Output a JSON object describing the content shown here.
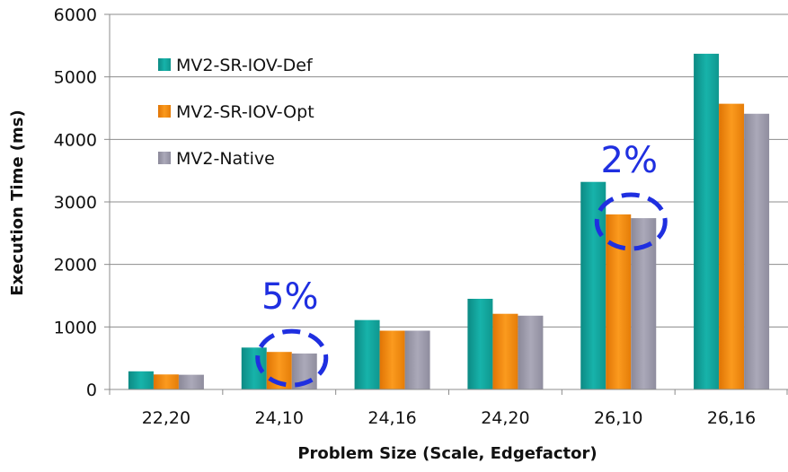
{
  "chart_data": {
    "type": "bar",
    "title": "",
    "xlabel": "Problem Size (Scale, Edgefactor)",
    "ylabel": "Execution Time (ms)",
    "ylim": [
      0,
      6000
    ],
    "yticks": [
      0,
      1000,
      2000,
      3000,
      4000,
      5000,
      6000
    ],
    "categories": [
      "22,20",
      "24,10",
      "24,16",
      "24,20",
      "26,10",
      "26,16"
    ],
    "series": [
      {
        "name": "MV2-SR-IOV-Def",
        "color": "#13a8a0",
        "values": [
          290,
          670,
          1110,
          1450,
          3320,
          5370
        ]
      },
      {
        "name": "MV2-SR-IOV-Opt",
        "color": "#f28a0e",
        "values": [
          240,
          600,
          940,
          1210,
          2800,
          4570
        ]
      },
      {
        "name": "MV2-Native",
        "color": "#9c9aaa",
        "values": [
          235,
          575,
          940,
          1180,
          2740,
          4410
        ]
      }
    ],
    "legend_position": "top-left",
    "grid": "horizontal",
    "annotations": [
      {
        "text": "5%",
        "category": "24,10"
      },
      {
        "text": "2%",
        "category": "26,10"
      }
    ]
  }
}
